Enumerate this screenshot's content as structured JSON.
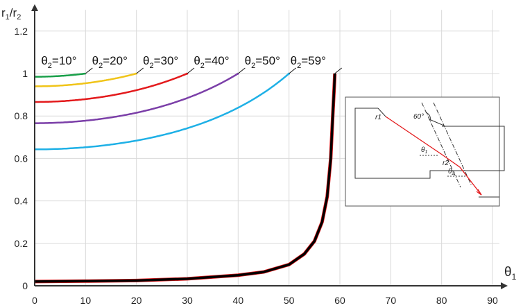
{
  "chart_data": {
    "type": "line",
    "xlabel": "θ",
    "xlabel_sub": "1",
    "ylabel_parts": [
      "r",
      "1",
      "/r",
      "2"
    ],
    "xlim": [
      0,
      90
    ],
    "ylim": [
      0,
      1.3
    ],
    "x_ticks": [
      0,
      10,
      20,
      30,
      40,
      50,
      60,
      70,
      80,
      90
    ],
    "y_ticks": [
      0,
      0.2,
      0.4,
      0.6,
      0.8,
      1,
      1.2
    ],
    "y_tick_labels": [
      "0",
      "0.2",
      "0.4",
      "0.6",
      "0.8",
      "1",
      "1.2"
    ],
    "grid": true,
    "series": [
      {
        "theta2": 10,
        "label_pre": "θ",
        "label_sub": "2",
        "label_post": "=10°",
        "color": "#1aa04a"
      },
      {
        "theta2": 20,
        "label_pre": "θ",
        "label_sub": "2",
        "label_post": "=20°",
        "color": "#f0c419"
      },
      {
        "theta2": 30,
        "label_pre": "θ",
        "label_sub": "2",
        "label_post": "=30°",
        "color": "#e31a1c"
      },
      {
        "theta2": 40,
        "label_pre": "θ",
        "label_sub": "2",
        "label_post": "=40°",
        "color": "#7b3fa8"
      },
      {
        "theta2": 50,
        "label_pre": "θ",
        "label_sub": "2",
        "label_post": "=50°",
        "color": "#1eb0e6"
      },
      {
        "theta2": 59,
        "label_pre": "θ",
        "label_sub": "2",
        "label_post": "=59°",
        "color": "#000000"
      }
    ],
    "inset": {
      "labels": {
        "r1": "r1",
        "r2": "r2",
        "angle": "60°",
        "theta1": "θ",
        "theta1_sub": "1",
        "theta2": "θ",
        "theta2_sub": "2"
      },
      "ray_color": "#e31a1c"
    }
  }
}
